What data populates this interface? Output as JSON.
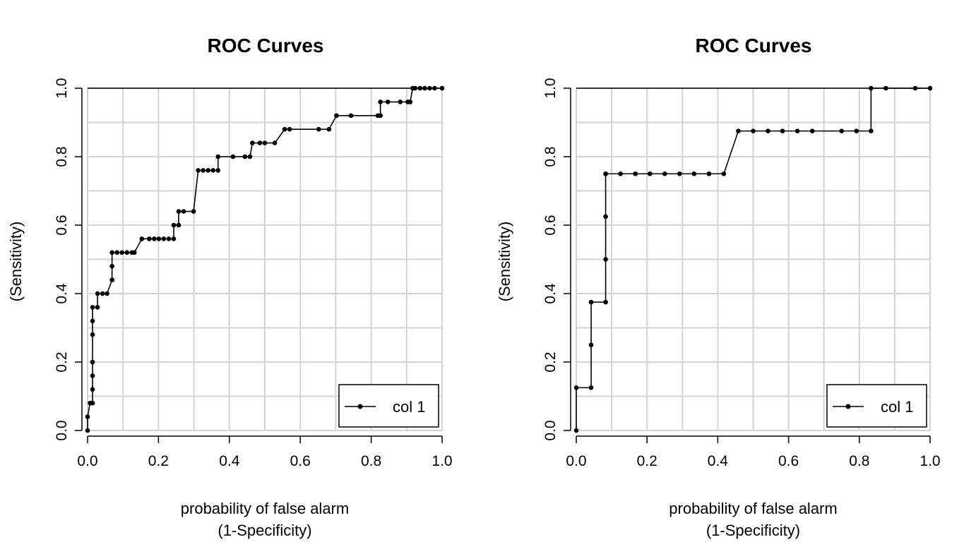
{
  "chart_data": [
    {
      "type": "line",
      "title": "ROC Curves",
      "xlabel": [
        "probability of false alarm",
        "(1-Specificity)"
      ],
      "ylabel": [
        "(Sensitivity)"
      ],
      "xlim": [
        0,
        1
      ],
      "ylim": [
        0,
        1
      ],
      "x_ticks": [
        "0.0",
        "0.2",
        "0.4",
        "0.6",
        "0.8",
        "1.0"
      ],
      "y_ticks": [
        "0.0",
        "0.2",
        "0.4",
        "0.6",
        "0.8",
        "1.0"
      ],
      "grid": true,
      "legend_position": "bottom-right",
      "series": [
        {
          "name": "col 1",
          "color": "#000000",
          "x": [
            0,
            0,
            0.007,
            0.014,
            0.014,
            0.014,
            0.014,
            0.014,
            0.014,
            0.014,
            0.028,
            0.028,
            0.042,
            0.055,
            0.069,
            0.069,
            0.069,
            0.083,
            0.097,
            0.111,
            0.125,
            0.132,
            0.153,
            0.174,
            0.188,
            0.201,
            0.215,
            0.229,
            0.243,
            0.243,
            0.257,
            0.257,
            0.271,
            0.299,
            0.312,
            0.326,
            0.34,
            0.354,
            0.368,
            0.368,
            0.41,
            0.444,
            0.458,
            0.465,
            0.486,
            0.5,
            0.528,
            0.556,
            0.57,
            0.652,
            0.681,
            0.702,
            0.743,
            0.819,
            0.826,
            0.826,
            0.847,
            0.882,
            0.903,
            0.91,
            0.917,
            0.924,
            0.938,
            0.951,
            0.965,
            0.979,
            1.0
          ],
          "y": [
            0,
            0.04,
            0.08,
            0.08,
            0.12,
            0.16,
            0.2,
            0.28,
            0.32,
            0.36,
            0.36,
            0.4,
            0.4,
            0.4,
            0.44,
            0.48,
            0.52,
            0.52,
            0.52,
            0.52,
            0.52,
            0.52,
            0.56,
            0.56,
            0.56,
            0.56,
            0.56,
            0.56,
            0.56,
            0.6,
            0.6,
            0.64,
            0.64,
            0.64,
            0.76,
            0.76,
            0.76,
            0.76,
            0.76,
            0.8,
            0.8,
            0.8,
            0.8,
            0.84,
            0.84,
            0.84,
            0.84,
            0.88,
            0.88,
            0.88,
            0.88,
            0.92,
            0.92,
            0.92,
            0.92,
            0.96,
            0.96,
            0.96,
            0.96,
            0.96,
            1.0,
            1.0,
            1.0,
            1.0,
            1.0,
            1.0,
            1.0
          ]
        }
      ]
    },
    {
      "type": "line",
      "title": "ROC Curves",
      "xlabel": [
        "probability of false alarm",
        "(1-Specificity)"
      ],
      "ylabel": [
        "(Sensitivity)"
      ],
      "xlim": [
        0,
        1
      ],
      "ylim": [
        0,
        1
      ],
      "x_ticks": [
        "0.0",
        "0.2",
        "0.4",
        "0.6",
        "0.8",
        "1.0"
      ],
      "y_ticks": [
        "0.0",
        "0.2",
        "0.4",
        "0.6",
        "0.8",
        "1.0"
      ],
      "grid": true,
      "legend_position": "bottom-right",
      "series": [
        {
          "name": "col 1",
          "color": "#000000",
          "x": [
            0,
            0,
            0.042,
            0.042,
            0.042,
            0.083,
            0.083,
            0.083,
            0.083,
            0.083,
            0.125,
            0.167,
            0.208,
            0.25,
            0.292,
            0.333,
            0.375,
            0.417,
            0.458,
            0.5,
            0.542,
            0.583,
            0.625,
            0.667,
            0.75,
            0.792,
            0.833,
            0.833,
            0.875,
            0.958,
            1.0
          ],
          "y": [
            0,
            0.125,
            0.125,
            0.25,
            0.375,
            0.375,
            0.5,
            0.625,
            0.75,
            0.75,
            0.75,
            0.75,
            0.75,
            0.75,
            0.75,
            0.75,
            0.75,
            0.75,
            0.875,
            0.875,
            0.875,
            0.875,
            0.875,
            0.875,
            0.875,
            0.875,
            0.875,
            1.0,
            1.0,
            1.0,
            1.0
          ]
        }
      ]
    }
  ]
}
